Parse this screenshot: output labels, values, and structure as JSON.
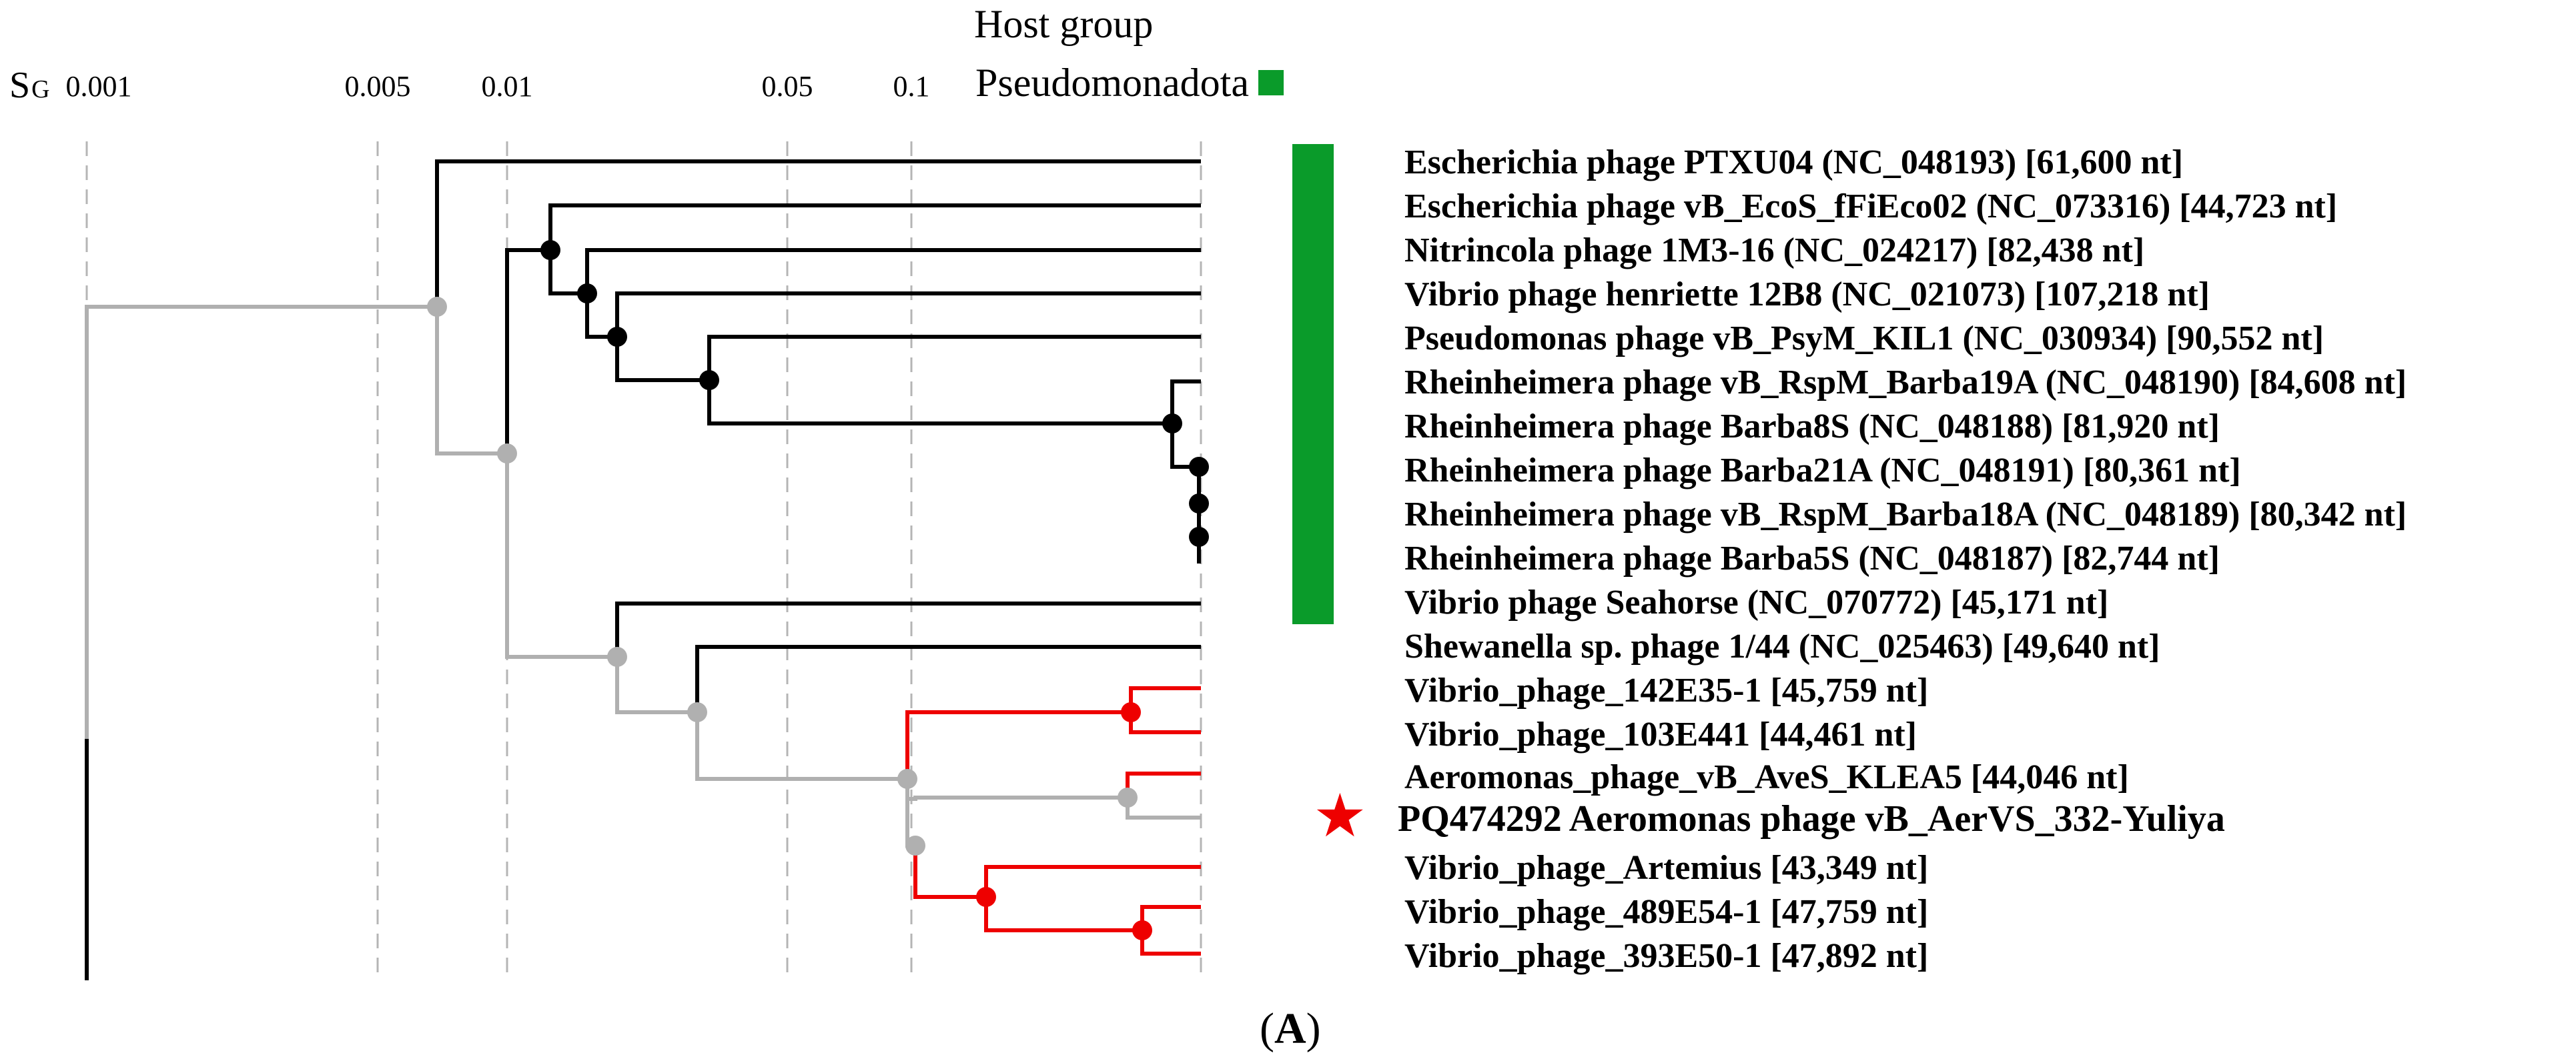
{
  "header": {
    "host_group_title": "Host group",
    "legend": [
      {
        "label": "Pseudomonadota",
        "color": "#0a9b2a"
      }
    ]
  },
  "scale": {
    "label_main": "S",
    "label_sub": "G",
    "ticks": [
      "0.001",
      "0.005",
      "0.01",
      "0.05",
      "0.1"
    ]
  },
  "colors": {
    "black_branch": "#000000",
    "grey_branch": "#b0b0b0",
    "red_branch": "#ee0000",
    "host_green": "#0a9b2a",
    "star": "#ee0000"
  },
  "leaves": [
    {
      "name": "Escherichia phage PTXU04 (NC_048193) [61,600 nt]"
    },
    {
      "name": "Escherichia phage vB_EcoS_fFiEco02 (NC_073316) [44,723 nt]"
    },
    {
      "name": "Nitrincola phage 1M3-16 (NC_024217) [82,438 nt]"
    },
    {
      "name": "Vibrio phage henriette 12B8 (NC_021073) [107,218 nt]"
    },
    {
      "name": "Pseudomonas phage vB_PsyM_KIL1 (NC_030934) [90,552 nt]"
    },
    {
      "name": "Rheinheimera phage vB_RspM_Barba19A (NC_048190) [84,608 nt]"
    },
    {
      "name": "Rheinheimera phage Barba8S (NC_048188) [81,920 nt]"
    },
    {
      "name": "Rheinheimera phage Barba21A (NC_048191) [80,361 nt]"
    },
    {
      "name": "Rheinheimera phage vB_RspM_Barba18A (NC_048189) [80,342 nt]"
    },
    {
      "name": "Rheinheimera phage Barba5S (NC_048187) [82,744 nt]"
    },
    {
      "name": "Vibrio phage Seahorse (NC_070772) [45,171 nt]"
    },
    {
      "name": "Shewanella sp. phage 1/44 (NC_025463) [49,640 nt]"
    },
    {
      "name": "Vibrio_phage_142E35-1 [45,759 nt]"
    },
    {
      "name": "Vibrio_phage_103E441 [44,461 nt]"
    },
    {
      "name": "Aeromonas_phage_vB_AveS_KLEA5 [44,046 nt]"
    },
    {
      "name": "PQ474292 Aeromonas phage vB_AerVS_332-Yuliya"
    },
    {
      "name": "Vibrio_phage_Artemius [43,349 nt]"
    },
    {
      "name": "Vibrio_phage_489E54-1 [47,759 nt]"
    },
    {
      "name": "Vibrio_phage_393E50-1 [47,892 nt]"
    }
  ],
  "query_marker": "★",
  "panel_label": "A"
}
